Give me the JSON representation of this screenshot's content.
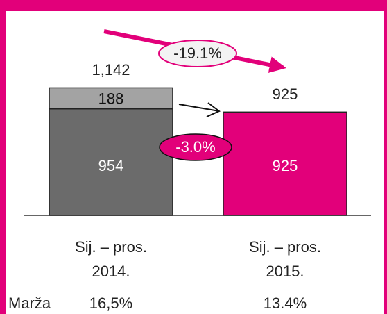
{
  "chart_data": {
    "type": "stacked_bar",
    "categories": [
      [
        "Sij. – pros.",
        "2014."
      ],
      [
        "Sij. – pros.",
        "2015."
      ]
    ],
    "series": [
      {
        "values": [
          954,
          925
        ],
        "colors": [
          "#6b6b6b",
          "#e2007a"
        ],
        "label_color": "#ffffff"
      },
      {
        "values": [
          188,
          null
        ],
        "colors": [
          "#a3a3a3",
          null
        ],
        "label_color": "#111111"
      }
    ],
    "totals": {
      "values": [
        1142,
        925
      ],
      "value_labels": [
        "1,142",
        "925"
      ]
    },
    "ylim": [
      0,
      1350
    ],
    "annotations": [
      {
        "text": "-19.1%"
      },
      {
        "text": "-3.0%"
      }
    ],
    "margin": {
      "label": "Marža",
      "values": [
        16.5,
        13.4
      ],
      "value_labels": [
        "16,5%",
        "13.4%"
      ]
    }
  }
}
